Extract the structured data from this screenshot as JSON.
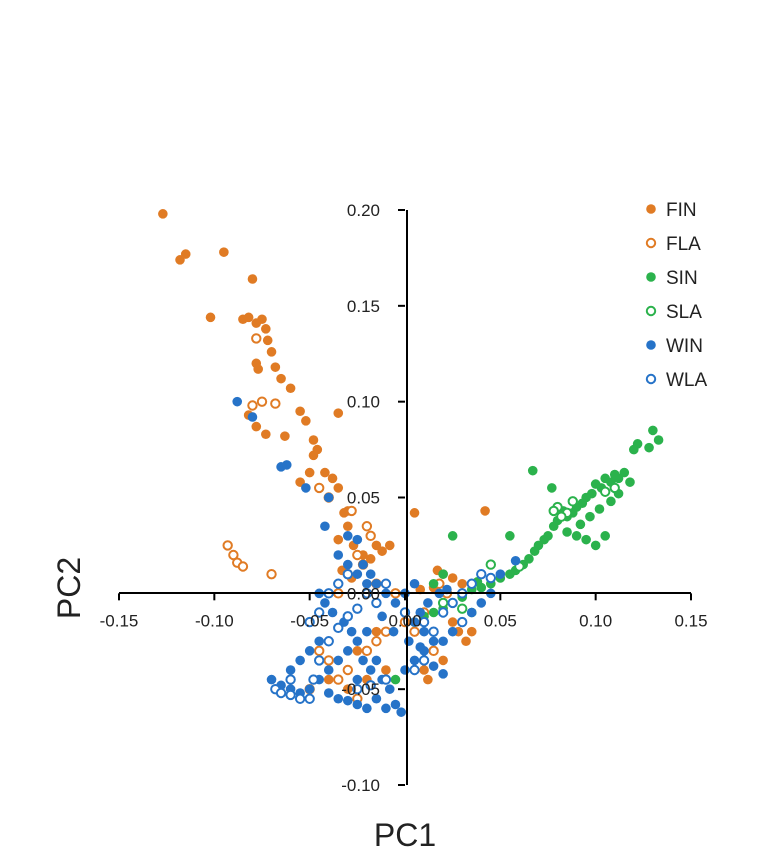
{
  "chart_data": {
    "type": "scatter",
    "xlabel": "PC1",
    "ylabel": "PC2",
    "xlim": [
      -0.15,
      0.15
    ],
    "ylim": [
      -0.1,
      0.2
    ],
    "x_ticks": [
      "-0.15",
      "-0.10",
      "-0.05",
      "0.00",
      "0.05",
      "0.10",
      "0.15"
    ],
    "y_ticks": [
      "-0.10",
      "-0.05",
      "0.00",
      "0.05",
      "0.10",
      "0.15",
      "0.20"
    ],
    "grid": false,
    "legend_position": "top-right",
    "colors": {
      "orange": "#e07b24",
      "green": "#2bb24c",
      "blue": "#2673c8"
    },
    "series": [
      {
        "name": "FIN",
        "color": "#e07b24",
        "filled": true,
        "points": [
          [
            -0.127,
            0.198
          ],
          [
            -0.118,
            0.174
          ],
          [
            -0.115,
            0.177
          ],
          [
            -0.095,
            0.178
          ],
          [
            -0.102,
            0.144
          ],
          [
            -0.085,
            0.143
          ],
          [
            -0.082,
            0.144
          ],
          [
            -0.08,
            0.164
          ],
          [
            -0.078,
            0.141
          ],
          [
            -0.075,
            0.143
          ],
          [
            -0.073,
            0.138
          ],
          [
            -0.072,
            0.132
          ],
          [
            -0.078,
            0.12
          ],
          [
            -0.077,
            0.117
          ],
          [
            -0.07,
            0.126
          ],
          [
            -0.068,
            0.118
          ],
          [
            -0.065,
            0.112
          ],
          [
            -0.06,
            0.107
          ],
          [
            -0.063,
            0.082
          ],
          [
            -0.055,
            0.095
          ],
          [
            -0.052,
            0.09
          ],
          [
            -0.048,
            0.08
          ],
          [
            -0.046,
            0.075
          ],
          [
            -0.048,
            0.072
          ],
          [
            -0.035,
            0.094
          ],
          [
            -0.082,
            0.093
          ],
          [
            -0.078,
            0.087
          ],
          [
            -0.073,
            0.083
          ],
          [
            -0.05,
            0.063
          ],
          [
            -0.042,
            0.063
          ],
          [
            -0.038,
            0.06
          ],
          [
            -0.045,
            0.055
          ],
          [
            -0.055,
            0.058
          ],
          [
            -0.035,
            0.055
          ],
          [
            -0.032,
            0.042
          ],
          [
            -0.03,
            0.043
          ],
          [
            -0.03,
            0.035
          ],
          [
            -0.035,
            0.028
          ],
          [
            -0.027,
            0.025
          ],
          [
            -0.033,
            0.012
          ],
          [
            -0.028,
            0.008
          ],
          [
            -0.022,
            0.02
          ],
          [
            -0.018,
            0.018
          ],
          [
            -0.015,
            0.025
          ],
          [
            -0.012,
            0.022
          ],
          [
            -0.008,
            0.025
          ],
          [
            0.005,
            0.042
          ],
          [
            0.017,
            0.012
          ],
          [
            0.02,
            0.01
          ],
          [
            0.025,
            0.008
          ],
          [
            0.03,
            0.005
          ],
          [
            0.015,
            0.003
          ],
          [
            0.008,
            0.002
          ],
          [
            0.042,
            0.043
          ],
          [
            0.028,
            -0.02
          ],
          [
            0.032,
            -0.025
          ],
          [
            0.02,
            -0.035
          ],
          [
            0.01,
            -0.04
          ],
          [
            0.012,
            -0.045
          ],
          [
            -0.01,
            -0.04
          ],
          [
            -0.02,
            -0.045
          ],
          [
            -0.025,
            -0.03
          ],
          [
            -0.015,
            -0.02
          ],
          [
            0.025,
            -0.015
          ],
          [
            0.035,
            -0.02
          ],
          [
            -0.04,
            -0.045
          ],
          [
            -0.03,
            -0.05
          ]
        ]
      },
      {
        "name": "FLA",
        "color": "#e07b24",
        "filled": false,
        "points": [
          [
            -0.078,
            0.133
          ],
          [
            -0.075,
            0.1
          ],
          [
            -0.08,
            0.098
          ],
          [
            -0.068,
            0.099
          ],
          [
            -0.093,
            0.025
          ],
          [
            -0.09,
            0.02
          ],
          [
            -0.088,
            0.016
          ],
          [
            -0.085,
            0.014
          ],
          [
            -0.07,
            0.01
          ],
          [
            -0.045,
            0.055
          ],
          [
            -0.04,
            0.05
          ],
          [
            -0.028,
            0.043
          ],
          [
            -0.02,
            0.035
          ],
          [
            -0.018,
            0.03
          ],
          [
            -0.025,
            0.02
          ],
          [
            -0.022,
            0.015
          ],
          [
            -0.03,
            0.01
          ],
          [
            -0.035,
            0.0
          ],
          [
            -0.015,
            0.005
          ],
          [
            -0.005,
            0.0
          ],
          [
            0.018,
            0.005
          ],
          [
            0.022,
            0.0
          ],
          [
            -0.045,
            -0.03
          ],
          [
            -0.04,
            -0.035
          ],
          [
            -0.03,
            -0.04
          ],
          [
            -0.035,
            -0.045
          ],
          [
            -0.02,
            -0.03
          ],
          [
            -0.015,
            -0.025
          ],
          [
            -0.01,
            -0.02
          ],
          [
            0.0,
            -0.015
          ],
          [
            0.005,
            -0.02
          ],
          [
            0.01,
            -0.01
          ],
          [
            0.015,
            -0.03
          ],
          [
            -0.025,
            -0.055
          ],
          [
            -0.05,
            -0.05
          ]
        ]
      },
      {
        "name": "SIN",
        "color": "#2bb24c",
        "filled": true,
        "points": [
          [
            0.13,
            0.085
          ],
          [
            0.133,
            0.08
          ],
          [
            0.128,
            0.076
          ],
          [
            0.122,
            0.078
          ],
          [
            0.12,
            0.075
          ],
          [
            0.115,
            0.063
          ],
          [
            0.112,
            0.06
          ],
          [
            0.11,
            0.062
          ],
          [
            0.108,
            0.058
          ],
          [
            0.105,
            0.06
          ],
          [
            0.103,
            0.055
          ],
          [
            0.1,
            0.057
          ],
          [
            0.098,
            0.052
          ],
          [
            0.095,
            0.05
          ],
          [
            0.093,
            0.047
          ],
          [
            0.09,
            0.045
          ],
          [
            0.088,
            0.042
          ],
          [
            0.085,
            0.04
          ],
          [
            0.083,
            0.043
          ],
          [
            0.08,
            0.038
          ],
          [
            0.078,
            0.035
          ],
          [
            0.075,
            0.03
          ],
          [
            0.073,
            0.028
          ],
          [
            0.07,
            0.025
          ],
          [
            0.068,
            0.022
          ],
          [
            0.065,
            0.018
          ],
          [
            0.062,
            0.015
          ],
          [
            0.058,
            0.012
          ],
          [
            0.055,
            0.01
          ],
          [
            0.05,
            0.008
          ],
          [
            0.045,
            0.005
          ],
          [
            0.04,
            0.003
          ],
          [
            0.035,
            0.002
          ],
          [
            0.03,
            -0.002
          ],
          [
            0.025,
            -0.005
          ],
          [
            0.02,
            -0.008
          ],
          [
            0.015,
            -0.01
          ],
          [
            0.01,
            -0.012
          ],
          [
            0.005,
            -0.015
          ],
          [
            0.067,
            0.064
          ],
          [
            0.077,
            0.055
          ],
          [
            0.055,
            0.03
          ],
          [
            0.045,
            0.015
          ],
          [
            0.1,
            0.025
          ],
          [
            0.105,
            0.03
          ],
          [
            0.095,
            0.028
          ],
          [
            0.09,
            0.03
          ],
          [
            0.085,
            0.032
          ],
          [
            0.112,
            0.052
          ],
          [
            0.118,
            0.058
          ],
          [
            0.108,
            0.048
          ],
          [
            0.102,
            0.044
          ],
          [
            0.097,
            0.04
          ],
          [
            0.092,
            0.036
          ],
          [
            0.025,
            0.03
          ],
          [
            0.02,
            0.01
          ],
          [
            0.015,
            0.005
          ],
          [
            0.03,
            0.0
          ],
          [
            0.038,
            0.006
          ],
          [
            0.035,
            -0.01
          ],
          [
            -0.005,
            -0.045
          ]
        ]
      },
      {
        "name": "SLA",
        "color": "#2bb24c",
        "filled": false,
        "points": [
          [
            0.088,
            0.048
          ],
          [
            0.085,
            0.042
          ],
          [
            0.082,
            0.04
          ],
          [
            0.08,
            0.045
          ],
          [
            0.078,
            0.043
          ],
          [
            0.11,
            0.055
          ],
          [
            0.105,
            0.053
          ],
          [
            0.06,
            0.014
          ],
          [
            0.045,
            0.015
          ],
          [
            0.02,
            -0.005
          ],
          [
            0.03,
            -0.008
          ]
        ]
      },
      {
        "name": "WIN",
        "color": "#2673c8",
        "filled": true,
        "points": [
          [
            -0.088,
            0.1
          ],
          [
            -0.08,
            0.092
          ],
          [
            -0.065,
            0.066
          ],
          [
            -0.062,
            0.067
          ],
          [
            -0.052,
            0.055
          ],
          [
            -0.04,
            0.05
          ],
          [
            -0.042,
            0.035
          ],
          [
            -0.03,
            0.03
          ],
          [
            -0.025,
            0.028
          ],
          [
            -0.022,
            0.015
          ],
          [
            -0.018,
            0.01
          ],
          [
            -0.015,
            0.005
          ],
          [
            -0.01,
            0.0
          ],
          [
            -0.005,
            -0.005
          ],
          [
            0.0,
            -0.01
          ],
          [
            0.005,
            -0.015
          ],
          [
            0.01,
            -0.02
          ],
          [
            0.015,
            -0.025
          ],
          [
            -0.02,
            -0.02
          ],
          [
            -0.025,
            -0.025
          ],
          [
            -0.03,
            -0.03
          ],
          [
            -0.035,
            -0.035
          ],
          [
            -0.04,
            -0.04
          ],
          [
            -0.045,
            -0.045
          ],
          [
            -0.05,
            -0.05
          ],
          [
            -0.055,
            -0.052
          ],
          [
            -0.06,
            -0.05
          ],
          [
            -0.065,
            -0.048
          ],
          [
            -0.07,
            -0.045
          ],
          [
            -0.015,
            -0.055
          ],
          [
            -0.01,
            -0.06
          ],
          [
            -0.005,
            -0.058
          ],
          [
            -0.02,
            -0.06
          ],
          [
            -0.025,
            -0.058
          ],
          [
            -0.03,
            -0.056
          ],
          [
            0.0,
            -0.04
          ],
          [
            0.005,
            -0.035
          ],
          [
            0.01,
            -0.03
          ],
          [
            0.02,
            -0.025
          ],
          [
            0.025,
            -0.02
          ],
          [
            0.03,
            -0.015
          ],
          [
            0.035,
            -0.01
          ],
          [
            0.04,
            -0.005
          ],
          [
            0.045,
            0.0
          ],
          [
            0.05,
            0.01
          ],
          [
            0.058,
            0.017
          ],
          [
            0.008,
            -0.01
          ],
          [
            0.012,
            -0.005
          ],
          [
            0.018,
            0.0
          ],
          [
            0.022,
            0.002
          ],
          [
            -0.002,
            -0.062
          ],
          [
            -0.008,
            -0.05
          ],
          [
            -0.012,
            -0.045
          ],
          [
            -0.018,
            -0.04
          ],
          [
            -0.022,
            -0.035
          ],
          [
            -0.028,
            -0.02
          ],
          [
            -0.032,
            -0.015
          ],
          [
            -0.038,
            -0.01
          ],
          [
            -0.042,
            -0.005
          ],
          [
            -0.045,
            0.0
          ],
          [
            -0.035,
            0.02
          ],
          [
            -0.03,
            0.015
          ],
          [
            -0.025,
            0.01
          ],
          [
            -0.02,
            0.005
          ],
          [
            0.0,
            0.0
          ],
          [
            0.005,
            0.005
          ],
          [
            -0.012,
            -0.012
          ],
          [
            -0.006,
            -0.02
          ],
          [
            0.002,
            -0.025
          ],
          [
            0.008,
            -0.028
          ],
          [
            0.015,
            -0.038
          ],
          [
            0.02,
            -0.042
          ],
          [
            -0.045,
            -0.025
          ],
          [
            -0.05,
            -0.03
          ],
          [
            -0.055,
            -0.035
          ],
          [
            -0.06,
            -0.04
          ],
          [
            -0.04,
            -0.052
          ],
          [
            -0.035,
            -0.055
          ],
          [
            -0.025,
            -0.045
          ],
          [
            -0.015,
            -0.035
          ]
        ]
      },
      {
        "name": "WLA",
        "color": "#2673c8",
        "filled": false,
        "points": [
          [
            -0.068,
            -0.05
          ],
          [
            -0.06,
            -0.053
          ],
          [
            -0.055,
            -0.055
          ],
          [
            -0.05,
            -0.055
          ],
          [
            -0.048,
            -0.045
          ],
          [
            -0.045,
            -0.035
          ],
          [
            -0.04,
            -0.025
          ],
          [
            -0.035,
            -0.018
          ],
          [
            -0.03,
            -0.012
          ],
          [
            -0.025,
            -0.008
          ],
          [
            -0.02,
            0.0
          ],
          [
            -0.015,
            -0.005
          ],
          [
            -0.01,
            0.005
          ],
          [
            0.0,
            -0.01
          ],
          [
            0.01,
            -0.015
          ],
          [
            0.015,
            -0.02
          ],
          [
            0.02,
            -0.01
          ],
          [
            0.025,
            -0.005
          ],
          [
            0.03,
            0.0
          ],
          [
            0.035,
            0.005
          ],
          [
            -0.03,
            0.01
          ],
          [
            -0.035,
            0.005
          ],
          [
            -0.04,
            0.0
          ],
          [
            -0.045,
            -0.01
          ],
          [
            -0.05,
            -0.015
          ],
          [
            -0.025,
            -0.05
          ],
          [
            -0.018,
            -0.048
          ],
          [
            -0.01,
            -0.045
          ],
          [
            0.005,
            -0.04
          ],
          [
            0.01,
            -0.035
          ],
          [
            -0.06,
            -0.045
          ],
          [
            -0.065,
            -0.052
          ],
          [
            0.04,
            0.01
          ],
          [
            0.045,
            0.008
          ],
          [
            0.03,
            -0.015
          ]
        ]
      }
    ]
  }
}
